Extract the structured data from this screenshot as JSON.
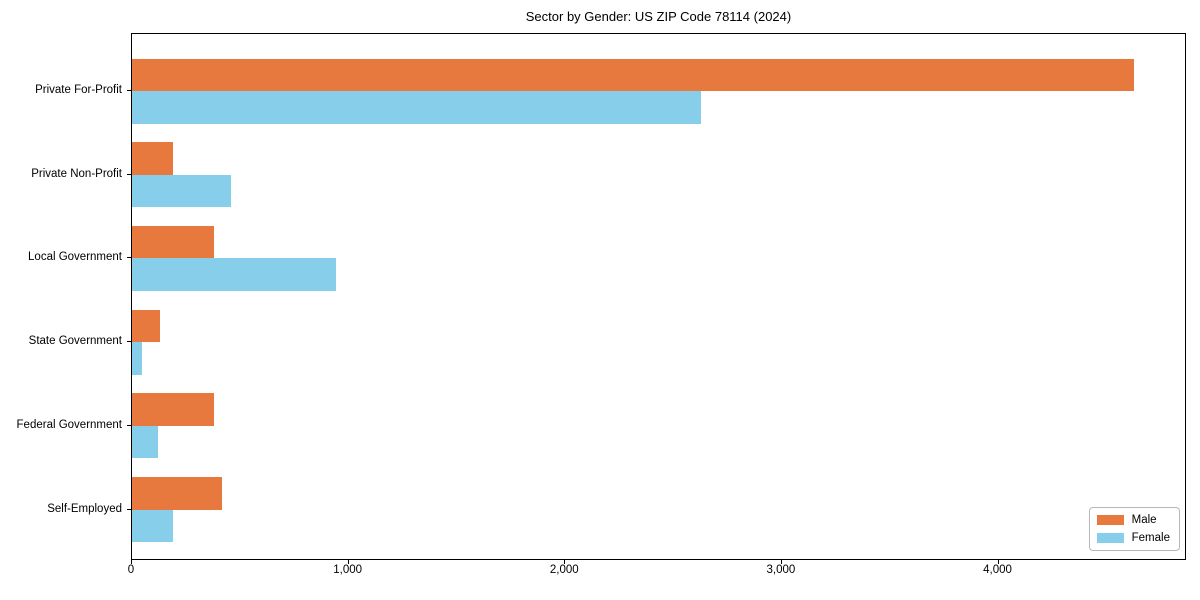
{
  "title": "Sector by Gender: US ZIP Code 78114 (2024)",
  "colors": {
    "male": "#e8793e",
    "female": "#87ceeb",
    "spine": "#000000",
    "background": "#ffffff"
  },
  "chart_data": {
    "type": "bar",
    "orientation": "horizontal",
    "title": "Sector by Gender: US ZIP Code 78114 (2024)",
    "categories": [
      "Private For-Profit",
      "Private Non-Profit",
      "Local Government",
      "State Government",
      "Federal Government",
      "Self-Employed"
    ],
    "series": [
      {
        "name": "Male",
        "color": "#e8793e",
        "values": [
          4635,
          190,
          380,
          130,
          380,
          415
        ]
      },
      {
        "name": "Female",
        "color": "#87ceeb",
        "values": [
          2630,
          460,
          945,
          47,
          120,
          190
        ]
      }
    ],
    "xlabel": "",
    "ylabel": "",
    "xlim": [
      0,
      4870
    ],
    "xticks": [
      0,
      1000,
      2000,
      3000,
      4000
    ],
    "xtick_labels": [
      "0",
      "1,000",
      "2,000",
      "3,000",
      "4,000"
    ],
    "grid": false,
    "legend_position": "lower right"
  }
}
